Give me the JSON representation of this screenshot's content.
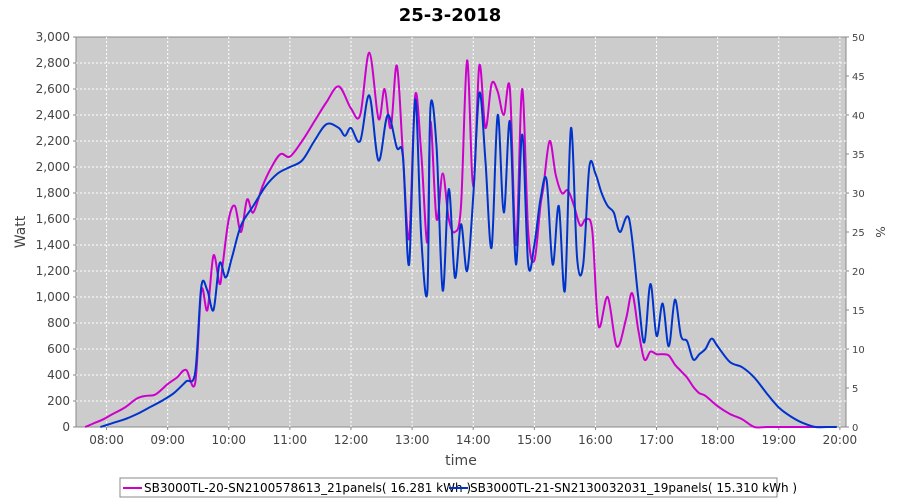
{
  "chart_data": {
    "type": "line",
    "title": "25-3-2018",
    "xlabel": "time",
    "ylabel": "Watt",
    "y2label": "%",
    "ylim": [
      0,
      3000
    ],
    "y2lim": [
      0,
      50
    ],
    "xlim": [
      7.5,
      20.1
    ],
    "x_ticks": [
      "08:00",
      "09:00",
      "10:00",
      "11:00",
      "12:00",
      "13:00",
      "14:00",
      "15:00",
      "16:00",
      "17:00",
      "18:00",
      "19:00",
      "20:00"
    ],
    "y_ticks": [
      "0",
      "200",
      "400",
      "600",
      "800",
      "1,000",
      "1,200",
      "1,400",
      "1,600",
      "1,800",
      "2,000",
      "2,200",
      "2,400",
      "2,600",
      "2,800",
      "3,000"
    ],
    "y2_ticks": [
      "0",
      "5",
      "10",
      "15",
      "20",
      "25",
      "30",
      "35",
      "40",
      "45",
      "50"
    ],
    "grid": true,
    "legend_position": "bottom",
    "series": [
      {
        "name": "SB3000TL-20-SN2100578613_21panels( 16.281 kWh )",
        "color": "#cc00cc",
        "x": [
          7.65,
          7.8,
          7.95,
          8.1,
          8.3,
          8.5,
          8.65,
          8.8,
          9.0,
          9.15,
          9.3,
          9.45,
          9.55,
          9.65,
          9.75,
          9.85,
          9.9,
          10.0,
          10.1,
          10.2,
          10.3,
          10.4,
          10.55,
          10.7,
          10.85,
          11.0,
          11.2,
          11.4,
          11.6,
          11.8,
          12.0,
          12.15,
          12.3,
          12.45,
          12.55,
          12.65,
          12.75,
          12.85,
          12.95,
          13.05,
          13.15,
          13.25,
          13.3,
          13.4,
          13.5,
          13.6,
          13.7,
          13.8,
          13.9,
          14.0,
          14.1,
          14.2,
          14.3,
          14.4,
          14.5,
          14.6,
          14.7,
          14.8,
          14.9,
          15.0,
          15.1,
          15.15,
          15.25,
          15.35,
          15.45,
          15.55,
          15.65,
          15.75,
          15.85,
          15.95,
          16.05,
          16.2,
          16.35,
          16.5,
          16.6,
          16.7,
          16.8,
          16.9,
          17.0,
          17.1,
          17.2,
          17.3,
          17.4,
          17.5,
          17.6,
          17.7,
          17.8,
          18.0,
          18.2,
          18.4,
          18.6,
          18.8,
          19.0,
          19.2,
          19.4,
          19.6,
          19.8
        ],
        "values": [
          0,
          30,
          60,
          100,
          150,
          220,
          240,
          250,
          330,
          380,
          440,
          340,
          1050,
          900,
          1320,
          1100,
          1250,
          1600,
          1700,
          1500,
          1750,
          1650,
          1850,
          2000,
          2100,
          2080,
          2200,
          2350,
          2500,
          2620,
          2450,
          2400,
          2880,
          2370,
          2600,
          2300,
          2780,
          2100,
          1450,
          2550,
          2100,
          1420,
          2350,
          1600,
          1950,
          1600,
          1500,
          1700,
          2820,
          1850,
          2780,
          2300,
          2640,
          2580,
          2400,
          2600,
          1400,
          2600,
          1500,
          1280,
          1700,
          1850,
          2200,
          1940,
          1800,
          1820,
          1700,
          1550,
          1600,
          1500,
          780,
          1000,
          620,
          830,
          1030,
          750,
          520,
          580,
          560,
          560,
          550,
          480,
          430,
          380,
          310,
          260,
          240,
          160,
          100,
          60,
          0,
          0,
          0,
          0,
          0,
          0,
          0
        ]
      },
      {
        "name": "SB3000TL-21-SN2130032031_19panels( 15.310 kWh )",
        "color": "#0033cc",
        "x": [
          7.9,
          8.1,
          8.3,
          8.5,
          8.7,
          8.9,
          9.1,
          9.3,
          9.45,
          9.55,
          9.65,
          9.75,
          9.85,
          9.95,
          10.05,
          10.2,
          10.4,
          10.6,
          10.8,
          11.0,
          11.2,
          11.4,
          11.6,
          11.8,
          11.9,
          12.0,
          12.15,
          12.3,
          12.45,
          12.6,
          12.75,
          12.85,
          12.95,
          13.05,
          13.15,
          13.25,
          13.3,
          13.4,
          13.5,
          13.6,
          13.7,
          13.8,
          13.9,
          14.0,
          14.1,
          14.2,
          14.3,
          14.4,
          14.5,
          14.6,
          14.7,
          14.8,
          14.9,
          15.0,
          15.1,
          15.2,
          15.3,
          15.4,
          15.5,
          15.6,
          15.7,
          15.8,
          15.9,
          16.0,
          16.1,
          16.2,
          16.3,
          16.4,
          16.55,
          16.7,
          16.8,
          16.9,
          17.0,
          17.1,
          17.2,
          17.3,
          17.4,
          17.5,
          17.6,
          17.7,
          17.8,
          17.9,
          18.0,
          18.2,
          18.4,
          18.6,
          18.8,
          19.0,
          19.2,
          19.4,
          19.6,
          19.8,
          19.95
        ],
        "values": [
          0,
          30,
          60,
          100,
          150,
          200,
          260,
          350,
          420,
          1080,
          1050,
          900,
          1260,
          1150,
          1300,
          1550,
          1700,
          1850,
          1950,
          2000,
          2050,
          2200,
          2330,
          2300,
          2240,
          2300,
          2200,
          2550,
          2050,
          2400,
          2150,
          2080,
          1250,
          2520,
          1450,
          1050,
          2450,
          2150,
          1050,
          1830,
          1150,
          1560,
          1200,
          1770,
          2570,
          2050,
          1380,
          2400,
          1650,
          2350,
          1250,
          2250,
          1250,
          1400,
          1750,
          1900,
          1250,
          1700,
          1050,
          2300,
          1300,
          1250,
          2000,
          1950,
          1800,
          1700,
          1650,
          1500,
          1600,
          1000,
          650,
          1100,
          700,
          950,
          620,
          980,
          700,
          660,
          520,
          560,
          600,
          680,
          620,
          500,
          460,
          380,
          260,
          150,
          80,
          30,
          0,
          0,
          0
        ]
      }
    ]
  }
}
